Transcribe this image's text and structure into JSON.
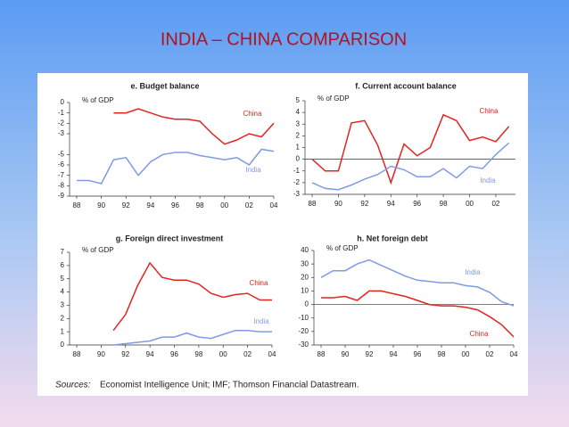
{
  "title": "INDIA – CHINA COMPARISON",
  "sources_label": "Sources:",
  "sources": "Economist Intelligence Unit; IMF; Thomson Financial Datastream.",
  "chart_data": [
    {
      "type": "line",
      "title": "e. Budget balance",
      "y_label": "% of GDP",
      "x": [
        1988,
        1989,
        1990,
        1991,
        1992,
        1993,
        1994,
        1995,
        1996,
        1997,
        1998,
        1999,
        2000,
        2001,
        2002,
        2003,
        2004
      ],
      "xlim": [
        1988,
        2004
      ],
      "xticks": [
        {
          "value": 1988,
          "label": "88"
        },
        {
          "value": 1990,
          "label": "90"
        },
        {
          "value": 1992,
          "label": "92"
        },
        {
          "value": 1994,
          "label": "94"
        },
        {
          "value": 1996,
          "label": "96"
        },
        {
          "value": 1998,
          "label": "98"
        },
        {
          "value": 2000,
          "label": "00"
        },
        {
          "value": 2002,
          "label": "02"
        },
        {
          "value": 2004,
          "label": "04"
        }
      ],
      "ylim": [
        -9,
        0
      ],
      "yticks": [
        0,
        -1,
        -2,
        -3,
        -5,
        -6,
        -7,
        -8,
        -9
      ],
      "series": [
        {
          "name": "China",
          "color": "#e3241e",
          "values": [
            null,
            null,
            null,
            -1,
            -1,
            -0.6,
            -1,
            -1.4,
            -1.6,
            -1.6,
            -1.8,
            -3,
            -4,
            -3.6,
            -3,
            -3.3,
            -2
          ]
        },
        {
          "name": "India",
          "color": "#7e9be6",
          "values": [
            -7.5,
            -7.5,
            -7.8,
            -5.5,
            -5.3,
            -7,
            -5.7,
            -5,
            -4.8,
            -4.8,
            -5.1,
            -5.3,
            -5.5,
            -5.3,
            -6,
            -4.5,
            -4.7
          ]
        }
      ]
    },
    {
      "type": "line",
      "title": "f. Current account balance",
      "y_label": "% of GDP",
      "x": [
        1988,
        1989,
        1990,
        1991,
        1992,
        1993,
        1994,
        1995,
        1996,
        1997,
        1998,
        1999,
        2000,
        2001,
        2002,
        2003
      ],
      "xlim": [
        1988,
        2003.5
      ],
      "xticks": [
        {
          "value": 1988,
          "label": "88"
        },
        {
          "value": 1990,
          "label": "90"
        },
        {
          "value": 1992,
          "label": "92"
        },
        {
          "value": 1994,
          "label": "94"
        },
        {
          "value": 1996,
          "label": "96"
        },
        {
          "value": 1998,
          "label": "98"
        },
        {
          "value": 2000,
          "label": "00"
        },
        {
          "value": 2002,
          "label": "02"
        }
      ],
      "ylim": [
        -3,
        5
      ],
      "yticks": [
        5,
        4,
        3,
        2,
        1,
        0,
        -1,
        -2,
        -3
      ],
      "series": [
        {
          "name": "China",
          "color": "#e3241e",
          "values": [
            0,
            -1,
            -1,
            3.1,
            3.3,
            1.2,
            -2,
            1.3,
            0.3,
            1,
            3.8,
            3.3,
            1.6,
            1.9,
            1.5,
            2.8
          ]
        },
        {
          "name": "India",
          "color": "#7e9be6",
          "values": [
            -2,
            -2.5,
            -2.6,
            -2.2,
            -1.7,
            -1.3,
            -0.6,
            -0.9,
            -1.5,
            -1.5,
            -0.8,
            -1.6,
            -0.6,
            -0.8,
            0.4,
            1.4
          ]
        }
      ]
    },
    {
      "type": "line",
      "title": "g. Foreign direct investment",
      "y_label": "% of GDP",
      "x": [
        1988,
        1989,
        1990,
        1991,
        1992,
        1993,
        1994,
        1995,
        1996,
        1997,
        1998,
        1999,
        2000,
        2001,
        2002,
        2003,
        2004
      ],
      "xlim": [
        1988,
        2004
      ],
      "xticks": [
        {
          "value": 1988,
          "label": "88"
        },
        {
          "value": 1990,
          "label": "90"
        },
        {
          "value": 1992,
          "label": "92"
        },
        {
          "value": 1994,
          "label": "94"
        },
        {
          "value": 1996,
          "label": "96"
        },
        {
          "value": 1998,
          "label": "98"
        },
        {
          "value": 2000,
          "label": "00"
        },
        {
          "value": 2002,
          "label": "02"
        },
        {
          "value": 2004,
          "label": "04"
        }
      ],
      "ylim": [
        0,
        7
      ],
      "yticks": [
        7,
        6,
        5,
        4,
        3,
        2,
        1,
        0
      ],
      "series": [
        {
          "name": "China",
          "color": "#e3241e",
          "values": [
            null,
            null,
            null,
            1.1,
            2.3,
            4.5,
            6.2,
            5.1,
            4.9,
            4.9,
            4.6,
            3.9,
            3.6,
            3.8,
            3.9,
            3.4,
            3.4
          ]
        },
        {
          "name": "India",
          "color": "#7e9be6",
          "values": [
            null,
            null,
            null,
            0,
            0.1,
            0.2,
            0.3,
            0.6,
            0.6,
            0.9,
            0.6,
            0.5,
            0.8,
            1.1,
            1.1,
            1,
            1
          ]
        }
      ]
    },
    {
      "type": "line",
      "title": "h. Net foreign debt",
      "y_label": "% of GDP",
      "x": [
        1988,
        1989,
        1990,
        1991,
        1992,
        1993,
        1994,
        1995,
        1996,
        1997,
        1998,
        1999,
        2000,
        2001,
        2002,
        2003,
        2004
      ],
      "xlim": [
        1988,
        2004
      ],
      "xticks": [
        {
          "value": 1988,
          "label": "88"
        },
        {
          "value": 1990,
          "label": "90"
        },
        {
          "value": 1992,
          "label": "92"
        },
        {
          "value": 1994,
          "label": "94"
        },
        {
          "value": 1996,
          "label": "96"
        },
        {
          "value": 1998,
          "label": "98"
        },
        {
          "value": 2000,
          "label": "00"
        },
        {
          "value": 2002,
          "label": "02"
        },
        {
          "value": 2004,
          "label": "04"
        }
      ],
      "ylim": [
        -30,
        40
      ],
      "yticks": [
        40,
        30,
        20,
        10,
        0,
        -10,
        -20,
        -30
      ],
      "series": [
        {
          "name": "India",
          "color": "#7e9be6",
          "values": [
            20,
            25,
            25,
            30,
            33,
            29,
            25,
            21,
            18,
            17,
            16,
            16,
            14,
            13,
            9,
            2,
            -1
          ]
        },
        {
          "name": "China",
          "color": "#e3241e",
          "values": [
            5,
            5,
            6,
            3,
            10,
            10,
            8,
            6,
            3,
            0,
            -1,
            -1,
            -2,
            -4,
            -9,
            -15,
            -24
          ]
        }
      ]
    }
  ]
}
